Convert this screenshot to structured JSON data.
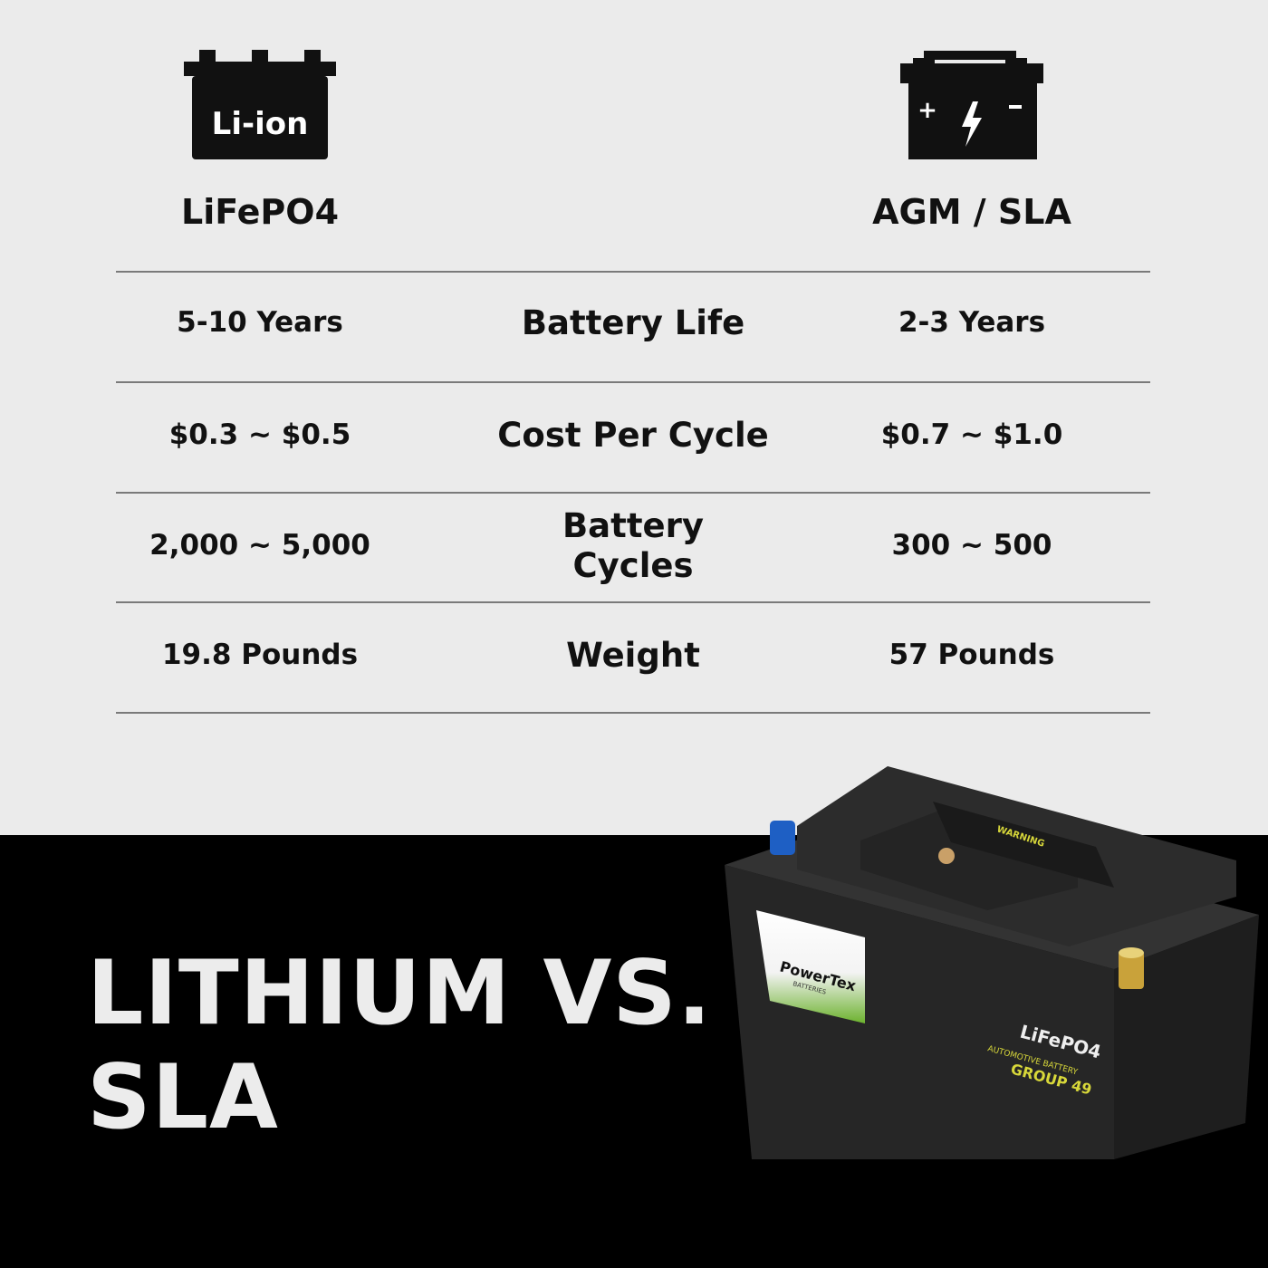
{
  "left_column": {
    "icon": "li-ion-battery-icon",
    "icon_text": "Li-ion",
    "title": "LiFePO4"
  },
  "right_column": {
    "icon": "lead-acid-battery-icon",
    "icon_symbols": [
      "+",
      "-"
    ],
    "title": "AGM / SLA"
  },
  "rows": [
    {
      "left": "5-10 Years",
      "label": "Battery Life",
      "right": "2-3 Years"
    },
    {
      "left": "$0.3 ~ $0.5",
      "label": "Cost Per Cycle",
      "right": "$0.7 ~ $1.0"
    },
    {
      "left": "2,000 ~ 5,000",
      "label": "Battery Cycles",
      "right": "300 ~ 500"
    },
    {
      "left": "19.8 Pounds",
      "label": "Weight",
      "right": "57 Pounds"
    }
  ],
  "headline": {
    "line1": "LITHIUM VS.",
    "line2": "SLA"
  },
  "product": {
    "brand": "PowerTex",
    "brand_sub": "BATTERIES",
    "chemistry": "LiFePO4",
    "type": "AUTOMOTIVE BATTERY",
    "group": "GROUP 49",
    "warning": "WARNING"
  },
  "colors": {
    "background_top": "#ebebeb",
    "background_bottom": "#000000",
    "text": "#111111",
    "headline": "#ececec",
    "label_yellow": "#d8d83a",
    "label_green": "#7cc23a",
    "terminal_negative": "#1e5fc4",
    "terminal_positive": "#c9a23a"
  }
}
